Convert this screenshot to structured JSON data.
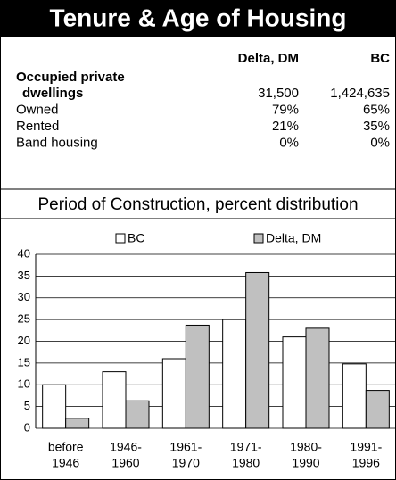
{
  "title": "Tenure & Age of Housing",
  "table": {
    "columns": [
      "Delta, DM",
      "BC"
    ],
    "rows": [
      {
        "label": [
          "Occupied private",
          "dwellings"
        ],
        "values": [
          "31,500",
          "1,424,635"
        ],
        "bold": true
      },
      {
        "label": [
          "Owned"
        ],
        "values": [
          "79%",
          "65%"
        ]
      },
      {
        "label": [
          "Rented"
        ],
        "values": [
          "21%",
          "35%"
        ]
      },
      {
        "label": [
          "Band housing"
        ],
        "values": [
          "0%",
          "0%"
        ]
      }
    ]
  },
  "chart_data": {
    "type": "bar",
    "title": "Period of Construction, percent distribution",
    "categories": [
      [
        "before",
        "1946"
      ],
      [
        "1946-",
        "1960"
      ],
      [
        "1961-",
        "1970"
      ],
      [
        "1971-",
        "1980"
      ],
      [
        "1980-",
        "1990"
      ],
      [
        "1991-",
        "1996"
      ]
    ],
    "series": [
      {
        "name": "BC",
        "color": "#ffffff",
        "values": [
          10,
          13,
          16,
          25,
          21,
          14.8
        ]
      },
      {
        "name": "Delta, DM",
        "color": "#c0c0c0",
        "values": [
          2.3,
          6.3,
          23.7,
          35.8,
          23,
          8.7
        ]
      }
    ],
    "ylim": [
      0,
      40
    ],
    "yticks": [
      0,
      5,
      10,
      15,
      20,
      25,
      30,
      35,
      40
    ],
    "grid": true
  }
}
